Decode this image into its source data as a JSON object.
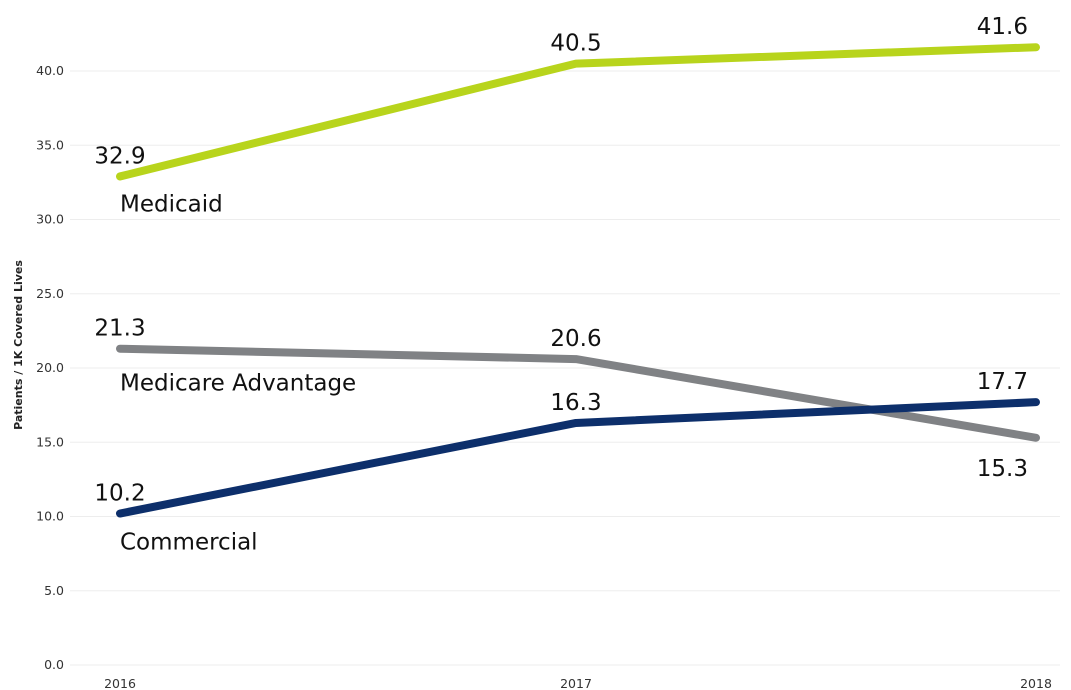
{
  "chart_data": {
    "type": "line",
    "title": "",
    "xlabel": "",
    "ylabel": "Patients / 1K Covered Lives",
    "x": [
      "2016",
      "2017",
      "2018"
    ],
    "ylim": [
      0,
      42
    ],
    "yticks": [
      "0.0",
      "5.0",
      "10.0",
      "15.0",
      "20.0",
      "25.0",
      "30.0",
      "35.0",
      "40.0"
    ],
    "grid": true,
    "legend": "inline-labels",
    "series": [
      {
        "name": "Medicaid",
        "color": "#b8d41c",
        "values": [
          32.9,
          40.5,
          41.6
        ],
        "labels": [
          "32.9",
          "40.5",
          "41.6"
        ]
      },
      {
        "name": "Medicare Advantage",
        "color": "#808285",
        "values": [
          21.3,
          20.6,
          15.3
        ],
        "labels": [
          "21.3",
          "20.6",
          "15.3"
        ]
      },
      {
        "name": "Commercial",
        "color": "#0d2f6b",
        "values": [
          10.2,
          16.3,
          17.7
        ],
        "labels": [
          "10.2",
          "16.3",
          "17.7"
        ]
      }
    ]
  }
}
